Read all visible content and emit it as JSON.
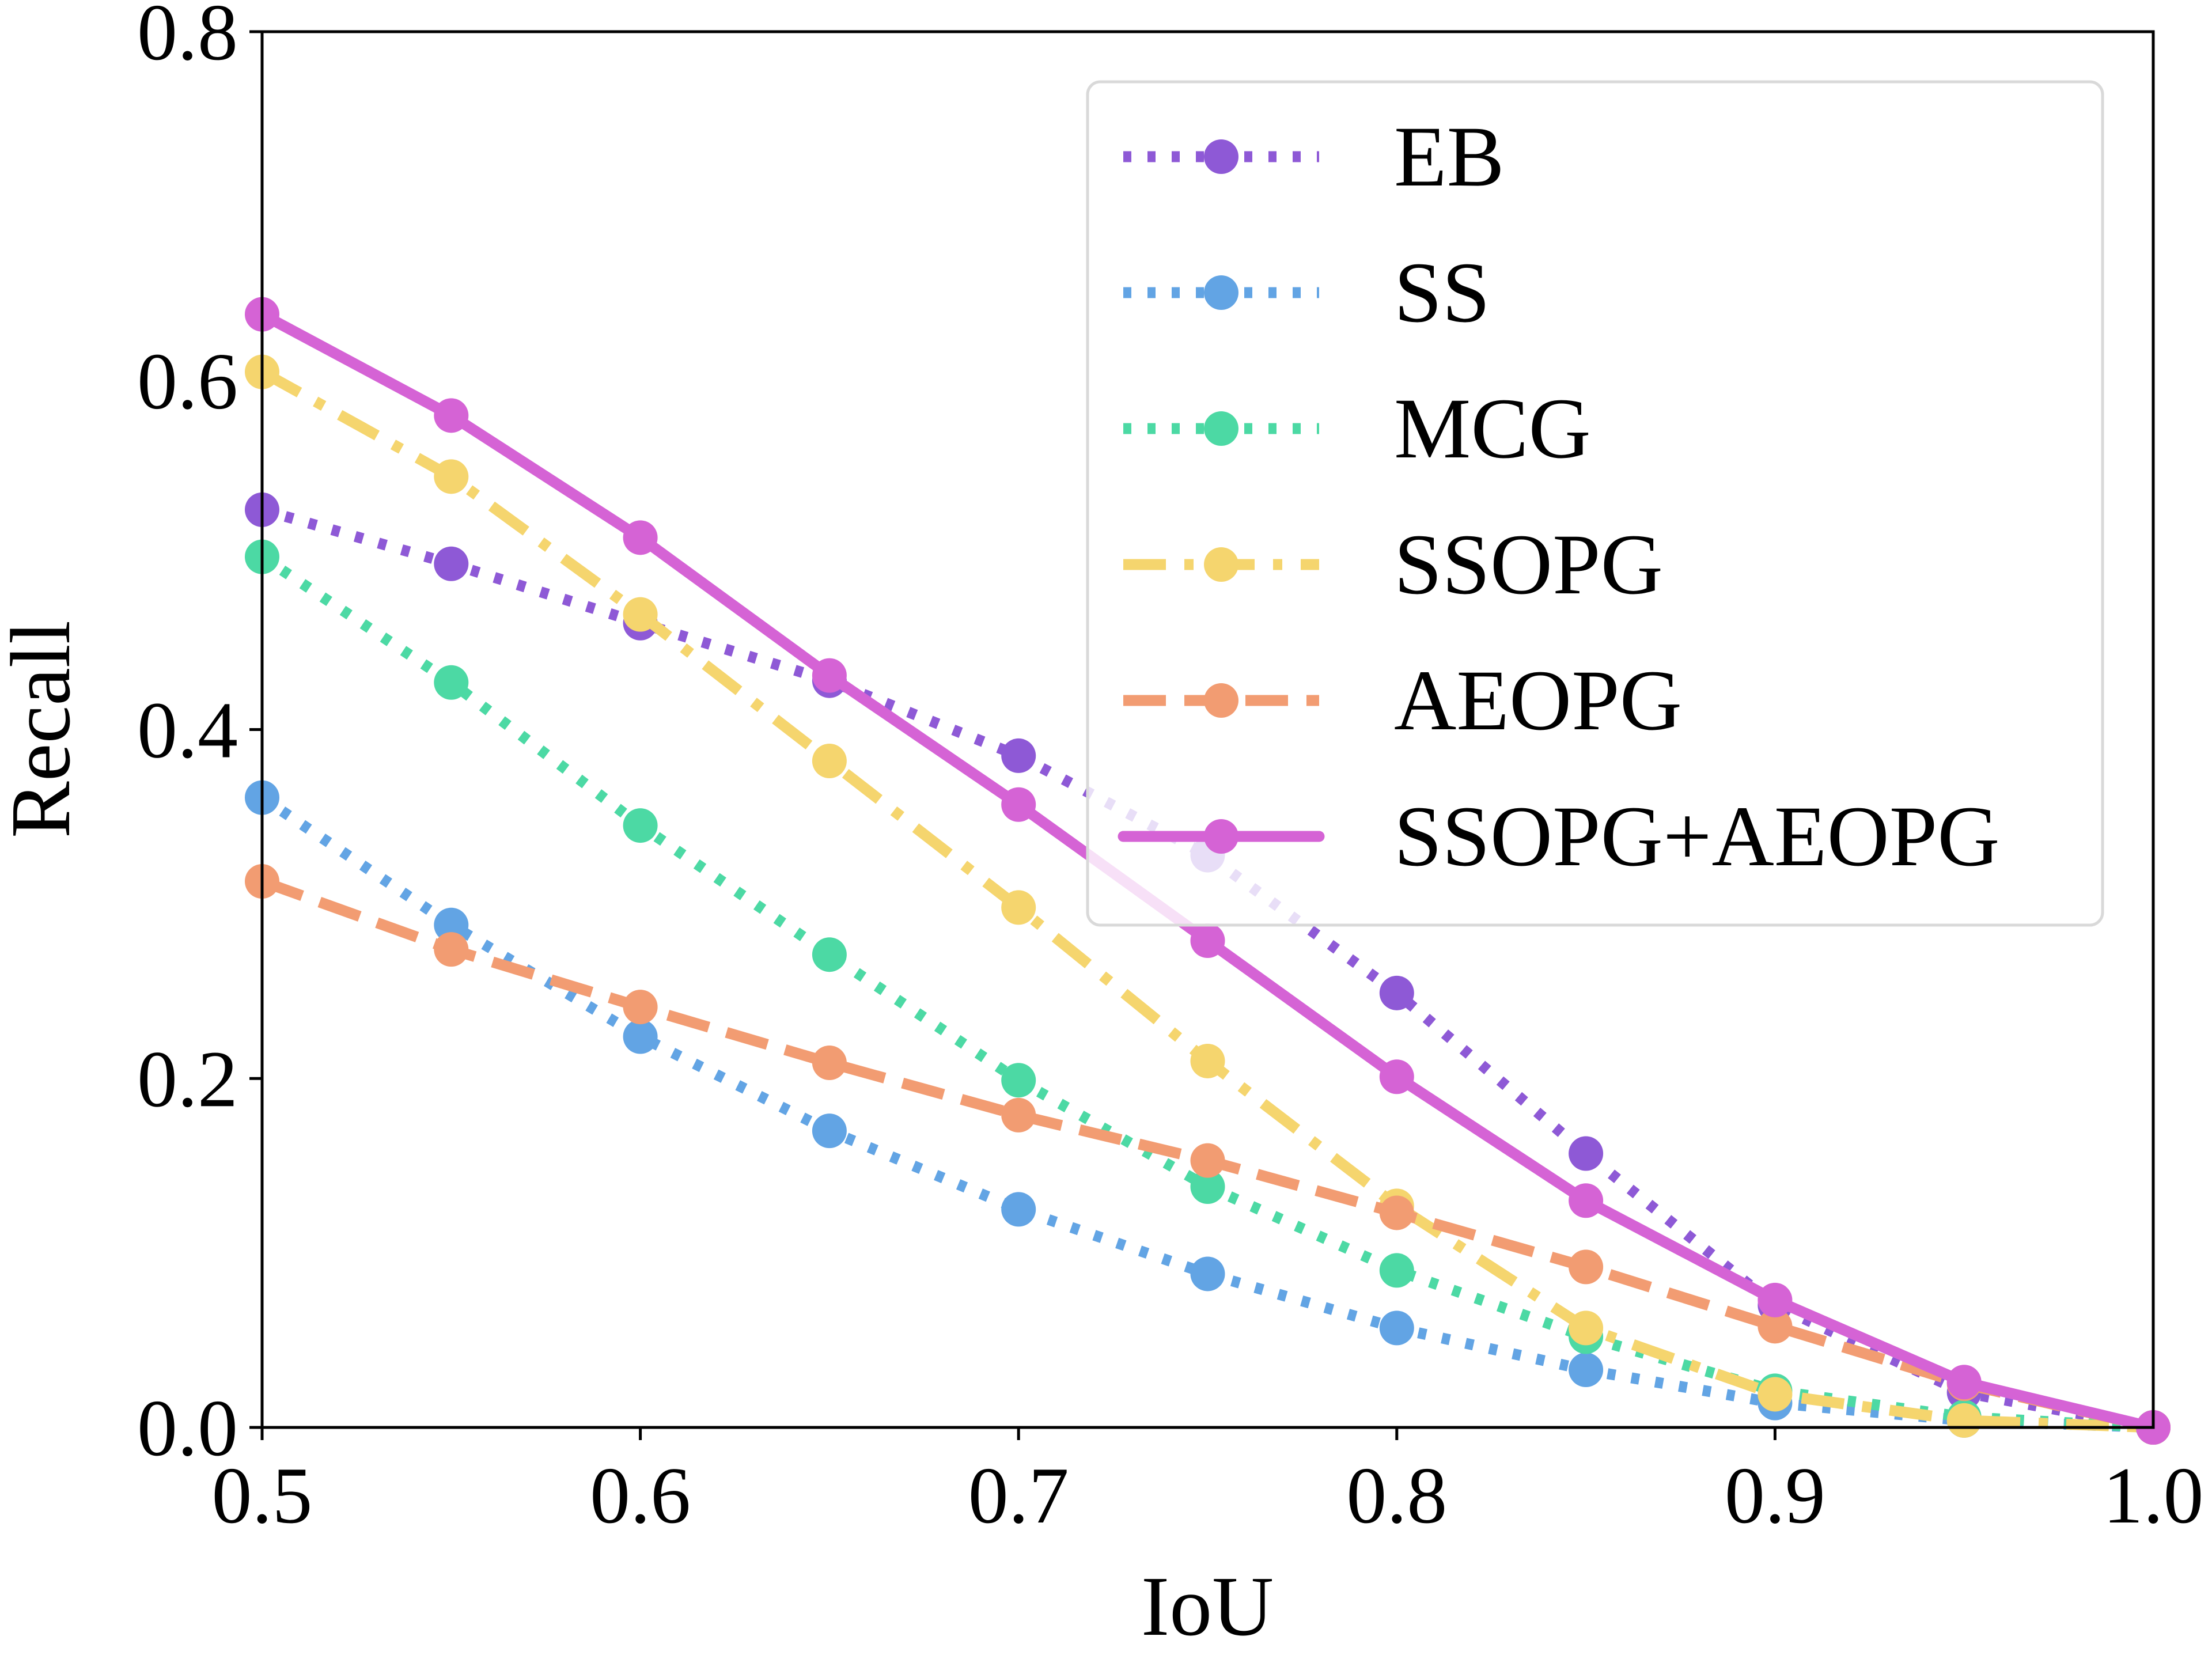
{
  "chart_data": {
    "type": "line",
    "title": "",
    "xlabel": "IoU",
    "ylabel": "Recall",
    "xlim": [
      0.5,
      1.0
    ],
    "ylim": [
      0.0,
      0.8
    ],
    "grid": false,
    "legend_position": "top-right",
    "x": [
      0.5,
      0.55,
      0.6,
      0.65,
      0.7,
      0.75,
      0.8,
      0.85,
      0.9,
      0.95,
      1.0
    ],
    "xticks": [
      "0.5",
      "0.6",
      "0.7",
      "0.8",
      "0.9",
      "1.0"
    ],
    "xtick_values": [
      0.5,
      0.6,
      0.7,
      0.8,
      0.9,
      1.0
    ],
    "yticks": [
      "0.0",
      "0.2",
      "0.4",
      "0.6",
      "0.8"
    ],
    "ytick_values": [
      0.0,
      0.2,
      0.4,
      0.6,
      0.8
    ],
    "series": [
      {
        "name": "EB",
        "color": "#8e59d6",
        "linestyle": "dotted",
        "values": [
          0.526,
          0.495,
          0.461,
          0.428,
          0.385,
          0.328,
          0.249,
          0.157,
          0.07,
          0.02,
          0.0
        ]
      },
      {
        "name": "SS",
        "color": "#62a4e4",
        "linestyle": "dotted",
        "values": [
          0.361,
          0.288,
          0.224,
          0.17,
          0.125,
          0.088,
          0.057,
          0.033,
          0.014,
          0.004,
          0.0
        ]
      },
      {
        "name": "MCG",
        "color": "#4cd9a4",
        "linestyle": "dotted",
        "values": [
          0.499,
          0.427,
          0.345,
          0.271,
          0.199,
          0.138,
          0.09,
          0.052,
          0.021,
          0.006,
          0.0
        ]
      },
      {
        "name": "SSOPG",
        "color": "#f5d56e",
        "linestyle": "dashdot",
        "values": [
          0.605,
          0.545,
          0.466,
          0.382,
          0.298,
          0.21,
          0.127,
          0.057,
          0.019,
          0.004,
          0.0
        ]
      },
      {
        "name": "AEOPG",
        "color": "#f29c72",
        "linestyle": "dashed",
        "values": [
          0.313,
          0.274,
          0.241,
          0.209,
          0.179,
          0.153,
          0.123,
          0.092,
          0.058,
          0.025,
          0.0
        ]
      },
      {
        "name": "SSOPG+AEOPG",
        "color": "#d563d5",
        "linestyle": "solid",
        "values": [
          0.638,
          0.58,
          0.51,
          0.431,
          0.357,
          0.279,
          0.201,
          0.13,
          0.073,
          0.026,
          0.0
        ]
      }
    ]
  }
}
